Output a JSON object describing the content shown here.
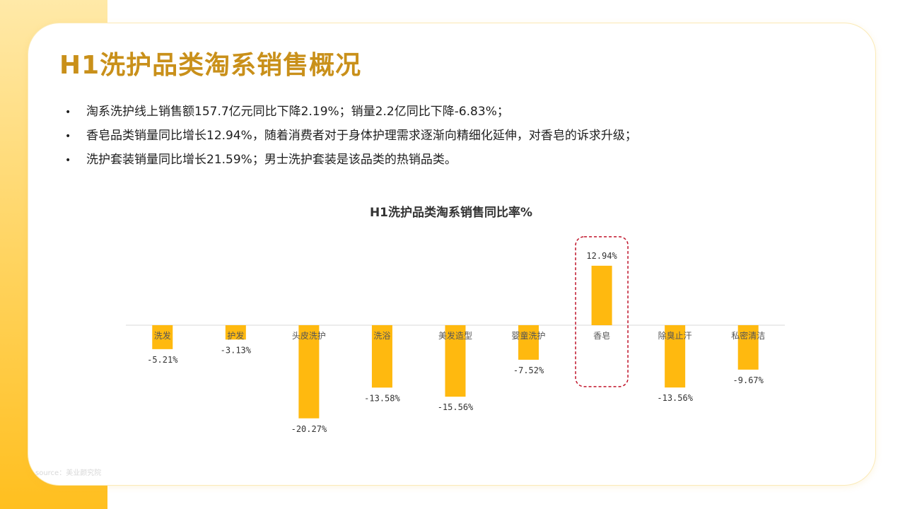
{
  "page": {
    "title": "H1洗护品类淘系销售概况",
    "bullets": [
      "淘系洗护线上销售额157.7亿元同比下降2.19%；销量2.2亿同比下降-6.83%；",
      "香皂品类销量同比增长12.94%，随着消费者对于身体护理需求逐渐向精细化延伸，对香皂的诉求升级；",
      "洗护套装销量同比增长21.59%；男士洗护套装是该品类的热销品类。"
    ],
    "bullet_symbol": "•",
    "source": "source：美业颜究院"
  },
  "colors": {
    "accent": "#c9901a",
    "bar": "#ffb90f",
    "highlight_border": "#c0142a",
    "band": "#ffd25a"
  },
  "chart_data": {
    "type": "bar",
    "title": "H1洗护品类淘系销售同比率%",
    "categories": [
      "洗发",
      "护发",
      "头皮洗护",
      "洗浴",
      "美发造型",
      "婴童洗护",
      "香皂",
      "除臭止汗",
      "私密清洁"
    ],
    "values": [
      -5.21,
      -3.13,
      -20.27,
      -13.58,
      -15.56,
      -7.52,
      12.94,
      -13.56,
      -9.67
    ],
    "value_labels": [
      "-5.21%",
      "-3.13%",
      "-20.27%",
      "-13.58%",
      "-15.56%",
      "-7.52%",
      "12.94%",
      "-13.56%",
      "-9.67%"
    ],
    "highlight_category": "香皂",
    "xlabel": "",
    "ylabel": "",
    "grid": false,
    "legend": "none"
  }
}
